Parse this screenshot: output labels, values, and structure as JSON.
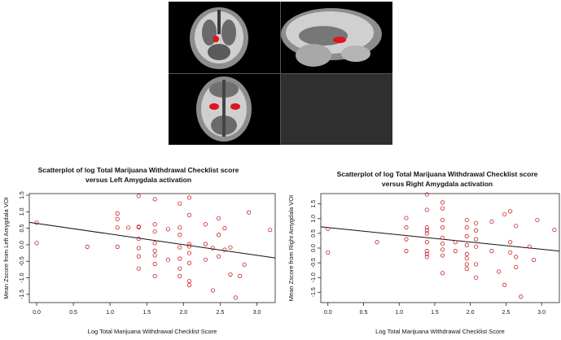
{
  "brain_panel": {
    "background": "#000000",
    "empty_cell_color": "#2f2f2f",
    "activation_color": "#e0141e",
    "views": [
      "coronal",
      "sagittal",
      "axial"
    ]
  },
  "chart_data": [
    {
      "type": "scatter",
      "title": [
        "Scatterplot of log Total Marijuana Withdrawal Checklist score",
        "versus Left Amygdala activation"
      ],
      "xlabel": "Log Total Marijuana Withdrawal Checklist Score",
      "ylabel": "Mean Zscore from Left Amygdala VOI",
      "xlim": [
        -0.1,
        3.25
      ],
      "ylim": [
        -1.75,
        1.55
      ],
      "xticks": [
        "0.0",
        "0.5",
        "1.0",
        "1.5",
        "2.0",
        "2.5",
        "3.0"
      ],
      "yticks": [
        "-1.5",
        "-1.0",
        "-0.5",
        "0.0",
        "0.5",
        "1.0",
        "1.5"
      ],
      "grid": false,
      "marker_color": "#cc2222",
      "line_color": "#111111",
      "fit_line": {
        "x": [
          -0.1,
          3.25
        ],
        "y": [
          0.68,
          -0.4
        ]
      },
      "points": [
        [
          0.0,
          0.67
        ],
        [
          0.0,
          0.05
        ],
        [
          0.69,
          -0.06
        ],
        [
          1.1,
          0.95
        ],
        [
          1.1,
          0.78
        ],
        [
          1.1,
          0.52
        ],
        [
          1.1,
          -0.06
        ],
        [
          1.25,
          0.52
        ],
        [
          1.39,
          1.48
        ],
        [
          1.39,
          0.55
        ],
        [
          1.39,
          0.18
        ],
        [
          1.39,
          -0.1
        ],
        [
          1.39,
          -0.35
        ],
        [
          1.39,
          -0.72
        ],
        [
          1.39,
          0.53
        ],
        [
          1.61,
          1.38
        ],
        [
          1.61,
          0.62
        ],
        [
          1.61,
          0.4
        ],
        [
          1.61,
          0.05
        ],
        [
          1.61,
          -0.18
        ],
        [
          1.61,
          -0.32
        ],
        [
          1.61,
          -0.58
        ],
        [
          1.61,
          -0.95
        ],
        [
          1.79,
          0.47
        ],
        [
          1.79,
          -0.45
        ],
        [
          1.95,
          1.25
        ],
        [
          1.95,
          0.52
        ],
        [
          1.95,
          0.3
        ],
        [
          1.95,
          -0.08
        ],
        [
          1.95,
          -0.42
        ],
        [
          1.95,
          -0.72
        ],
        [
          1.95,
          -0.95
        ],
        [
          2.08,
          1.43
        ],
        [
          2.08,
          0.9
        ],
        [
          2.08,
          0.02
        ],
        [
          2.08,
          -0.05
        ],
        [
          2.08,
          -0.25
        ],
        [
          2.08,
          -0.55
        ],
        [
          2.08,
          -1.1
        ],
        [
          2.08,
          -1.22
        ],
        [
          2.3,
          0.62
        ],
        [
          2.3,
          0.02
        ],
        [
          2.3,
          -0.45
        ],
        [
          2.4,
          -0.1
        ],
        [
          2.4,
          -1.38
        ],
        [
          2.48,
          0.8
        ],
        [
          2.48,
          0.3
        ],
        [
          2.48,
          -0.35
        ],
        [
          2.56,
          0.5
        ],
        [
          2.56,
          -0.15
        ],
        [
          2.64,
          -0.08
        ],
        [
          2.64,
          -0.9
        ],
        [
          2.71,
          -1.6
        ],
        [
          2.77,
          -0.95
        ],
        [
          2.83,
          -0.6
        ],
        [
          2.89,
          0.98
        ],
        [
          3.18,
          0.45
        ]
      ]
    },
    {
      "type": "scatter",
      "title": [
        "Scatterplot of log Total Marijuana Withdrawal Checklist score",
        "versus Right Amygdala activation"
      ],
      "xlabel": "Log Total Marijuana Withdrawal Checklist Score",
      "ylabel": "Mean Zscore from Right Amygdala VOI",
      "xlim": [
        -0.1,
        3.25
      ],
      "ylim": [
        -1.85,
        1.85
      ],
      "xticks": [
        "0.0",
        "0.5",
        "1.0",
        "1.5",
        "2.0",
        "2.5",
        "3.0"
      ],
      "yticks": [
        "-1.5",
        "-1.0",
        "-0.5",
        "0.0",
        "0.5",
        "1.0",
        "1.5"
      ],
      "grid": false,
      "marker_color": "#cc2222",
      "line_color": "#111111",
      "fit_line": {
        "x": [
          -0.1,
          3.25
        ],
        "y": [
          0.72,
          -0.1
        ]
      },
      "points": [
        [
          0.0,
          0.65
        ],
        [
          0.0,
          -0.15
        ],
        [
          0.69,
          0.2
        ],
        [
          1.1,
          1.02
        ],
        [
          1.1,
          0.7
        ],
        [
          1.1,
          0.3
        ],
        [
          1.1,
          -0.1
        ],
        [
          1.39,
          1.82
        ],
        [
          1.39,
          1.3
        ],
        [
          1.39,
          0.7
        ],
        [
          1.39,
          0.5
        ],
        [
          1.39,
          0.2
        ],
        [
          1.39,
          -0.1
        ],
        [
          1.39,
          -0.2
        ],
        [
          1.39,
          -0.3
        ],
        [
          1.39,
          0.6
        ],
        [
          1.61,
          1.55
        ],
        [
          1.61,
          1.35
        ],
        [
          1.61,
          0.95
        ],
        [
          1.61,
          0.7
        ],
        [
          1.61,
          0.35
        ],
        [
          1.61,
          0.15
        ],
        [
          1.61,
          -0.05
        ],
        [
          1.61,
          -0.25
        ],
        [
          1.61,
          -0.85
        ],
        [
          1.79,
          0.2
        ],
        [
          1.79,
          -0.1
        ],
        [
          1.95,
          0.95
        ],
        [
          1.95,
          0.7
        ],
        [
          1.95,
          0.4
        ],
        [
          1.95,
          0.1
        ],
        [
          1.95,
          -0.2
        ],
        [
          1.95,
          -0.35
        ],
        [
          1.95,
          -0.55
        ],
        [
          1.95,
          -0.7
        ],
        [
          2.08,
          0.85
        ],
        [
          2.08,
          0.6
        ],
        [
          2.08,
          0.3
        ],
        [
          2.08,
          0.05
        ],
        [
          2.08,
          -0.55
        ],
        [
          2.08,
          -1.0
        ],
        [
          2.3,
          -0.1
        ],
        [
          2.3,
          0.9
        ],
        [
          2.4,
          -0.8
        ],
        [
          2.48,
          1.15
        ],
        [
          2.48,
          -1.25
        ],
        [
          2.56,
          1.25
        ],
        [
          2.56,
          0.2
        ],
        [
          2.56,
          -0.15
        ],
        [
          2.64,
          -0.3
        ],
        [
          2.64,
          -0.65
        ],
        [
          2.64,
          0.75
        ],
        [
          2.71,
          -1.65
        ],
        [
          2.83,
          0.05
        ],
        [
          2.89,
          -0.4
        ],
        [
          2.94,
          0.95
        ],
        [
          3.18,
          0.62
        ]
      ]
    }
  ]
}
